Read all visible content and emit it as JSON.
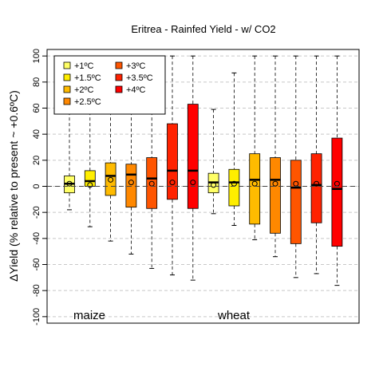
{
  "chart_data": {
    "type": "boxplot",
    "title": "Eritrea - Rainfed Yield - w/ CO2",
    "ylabel": "ΔYield (% relative to present ~ +0.6ºC)",
    "ylim": [
      -105,
      105
    ],
    "yticks": [
      -100,
      -80,
      -60,
      -40,
      -20,
      0,
      20,
      40,
      60,
      80,
      100
    ],
    "grid": true,
    "legend_position": "top-left",
    "legend": [
      {
        "label": "+1ºC",
        "color": "#ffff66"
      },
      {
        "label": "+1.5ºC",
        "color": "#ffee00"
      },
      {
        "label": "+2ºC",
        "color": "#ffbb00"
      },
      {
        "label": "+2.5ºC",
        "color": "#ff8800"
      },
      {
        "label": "+3ºC",
        "color": "#ff5500"
      },
      {
        "label": "+3.5ºC",
        "color": "#ff2200"
      },
      {
        "label": "+4ºC",
        "color": "#ff0000"
      }
    ],
    "groups": [
      {
        "label": "maize",
        "boxes": [
          {
            "level": "+1ºC",
            "whisker_low": -18,
            "q1": -5,
            "median": 2,
            "q3": 8,
            "whisker_high": 100,
            "mean": 2
          },
          {
            "level": "+1.5ºC",
            "whisker_low": -31,
            "q1": 0,
            "median": 4,
            "q3": 12,
            "whisker_high": 100,
            "mean": 1
          },
          {
            "level": "+2ºC",
            "whisker_low": -42,
            "q1": -7,
            "median": 8,
            "q3": 18,
            "whisker_high": 100,
            "mean": 5
          },
          {
            "level": "+2.5ºC",
            "whisker_low": -52,
            "q1": -16,
            "median": 9,
            "q3": 17,
            "whisker_high": 100,
            "mean": 3
          },
          {
            "level": "+3ºC",
            "whisker_low": -63,
            "q1": -17,
            "median": 6,
            "q3": 22,
            "whisker_high": 100,
            "mean": 2
          },
          {
            "level": "+3.5ºC",
            "whisker_low": -68,
            "q1": -10,
            "median": 12,
            "q3": 48,
            "whisker_high": 100,
            "mean": 3
          },
          {
            "level": "+4ºC",
            "whisker_low": -72,
            "q1": -17,
            "median": 12,
            "q3": 63,
            "whisker_high": 100,
            "mean": 3
          }
        ]
      },
      {
        "label": "wheat",
        "boxes": [
          {
            "level": "+1ºC",
            "whisker_low": -21,
            "q1": -5,
            "median": 3,
            "q3": 10,
            "whisker_high": 59,
            "mean": 1
          },
          {
            "level": "+1.5ºC",
            "whisker_low": -30,
            "q1": -15,
            "median": 3,
            "q3": 13,
            "whisker_high": 87,
            "mean": 2
          },
          {
            "level": "+2ºC",
            "whisker_low": -41,
            "q1": -29,
            "median": 5,
            "q3": 25,
            "whisker_high": 100,
            "mean": 2
          },
          {
            "level": "+2.5ºC",
            "whisker_low": -54,
            "q1": -36,
            "median": 5,
            "q3": 22,
            "whisker_high": 100,
            "mean": 2
          },
          {
            "level": "+3ºC",
            "whisker_low": -70,
            "q1": -44,
            "median": -1,
            "q3": 20,
            "whisker_high": 100,
            "mean": 2
          },
          {
            "level": "+3.5ºC",
            "whisker_low": -67,
            "q1": -28,
            "median": 1,
            "q3": 25,
            "whisker_high": 100,
            "mean": 2
          },
          {
            "level": "+4ºC",
            "whisker_low": -76,
            "q1": -46,
            "median": -2,
            "q3": 37,
            "whisker_high": 100,
            "mean": 2
          }
        ]
      }
    ]
  }
}
